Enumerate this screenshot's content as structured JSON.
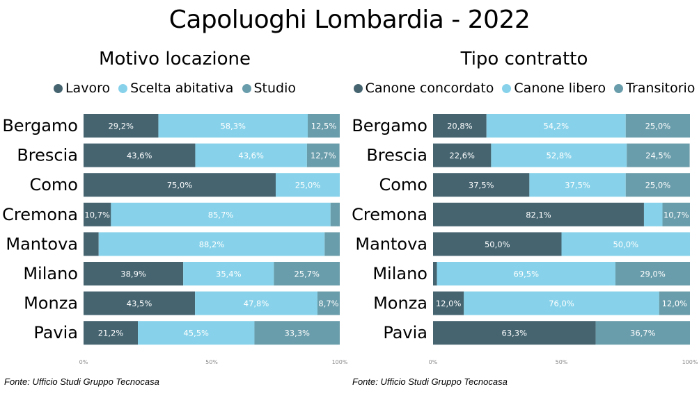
{
  "title": "Capoluoghi Lombardia - 2022",
  "colors": {
    "dark": "#456470",
    "light": "#87d2ea",
    "mid": "#6a9dab"
  },
  "chart_data": [
    {
      "type": "bar",
      "orientation": "horizontal",
      "stacked": "percent",
      "title": "Motivo locazione",
      "categories": [
        "Bergamo",
        "Brescia",
        "Como",
        "Cremona",
        "Mantova",
        "Milano",
        "Monza",
        "Pavia"
      ],
      "series": [
        {
          "name": "Lavoro",
          "color": "#456470",
          "values": [
            29.2,
            43.6,
            75.0,
            10.7,
            5.9,
            38.9,
            43.5,
            21.2
          ],
          "labels": [
            "29,2%",
            "43,6%",
            "75,0%",
            "10,7%",
            "",
            "38,9%",
            "43,5%",
            "21,2%"
          ]
        },
        {
          "name": "Scelta abitativa",
          "color": "#87d2ea",
          "values": [
            58.3,
            43.6,
            25.0,
            85.7,
            88.2,
            35.4,
            47.8,
            45.5
          ],
          "labels": [
            "58,3%",
            "43,6%",
            "25,0%",
            "85,7%",
            "88,2%",
            "35,4%",
            "47,8%",
            "45,5%"
          ]
        },
        {
          "name": "Studio",
          "color": "#6a9dab",
          "values": [
            12.5,
            12.7,
            0.0,
            3.6,
            5.9,
            25.7,
            8.7,
            33.3
          ],
          "labels": [
            "12,5%",
            "12,7%",
            "",
            "",
            "",
            "25,7%",
            "8,7%",
            "33,3%"
          ]
        }
      ],
      "xticks": [
        "0%",
        "50%",
        "100%"
      ],
      "xlim": [
        0,
        100
      ],
      "legend": "top",
      "source": "Fonte: Ufficio Studi Gruppo Tecnocasa"
    },
    {
      "type": "bar",
      "orientation": "horizontal",
      "stacked": "percent",
      "title": "Tipo contratto",
      "categories": [
        "Bergamo",
        "Brescia",
        "Como",
        "Cremona",
        "Mantova",
        "Milano",
        "Monza",
        "Pavia"
      ],
      "series": [
        {
          "name": "Canone concordato",
          "color": "#456470",
          "values": [
            20.8,
            22.6,
            37.5,
            82.1,
            50.0,
            1.5,
            12.0,
            63.3
          ],
          "labels": [
            "20,8%",
            "22,6%",
            "37,5%",
            "82,1%",
            "50,0%",
            "",
            "12,0%",
            "63,3%"
          ]
        },
        {
          "name": "Canone libero",
          "color": "#87d2ea",
          "values": [
            54.2,
            52.8,
            37.5,
            7.2,
            50.0,
            69.5,
            76.0,
            0.0
          ],
          "labels": [
            "54,2%",
            "52,8%",
            "37,5%",
            "",
            "50,0%",
            "69,5%",
            "76,0%",
            ""
          ]
        },
        {
          "name": "Transitorio",
          "color": "#6a9dab",
          "values": [
            25.0,
            24.5,
            25.0,
            10.7,
            0.0,
            29.0,
            12.0,
            36.7
          ],
          "labels": [
            "25,0%",
            "24,5%",
            "25,0%",
            "10,7%",
            "",
            "29,0%",
            "12,0%",
            "36,7%"
          ]
        }
      ],
      "xticks": [
        "0%",
        "50%",
        "100%"
      ],
      "xlim": [
        0,
        100
      ],
      "legend": "top",
      "source": "Fonte: Ufficio Studi Gruppo Tecnocasa"
    }
  ]
}
